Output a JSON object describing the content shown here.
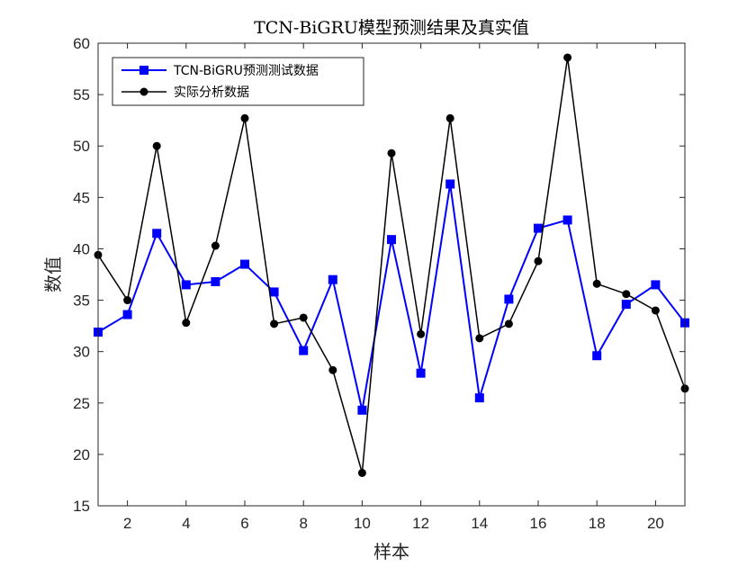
{
  "chart_data": {
    "type": "line",
    "title": "TCN-BiGRU模型预测结果及真实值",
    "xlabel": "样本",
    "ylabel": "数值",
    "xlim": [
      1,
      21
    ],
    "ylim": [
      15,
      60
    ],
    "xticks": [
      2,
      4,
      6,
      8,
      10,
      12,
      14,
      16,
      18,
      20
    ],
    "yticks": [
      15,
      20,
      25,
      30,
      35,
      40,
      45,
      50,
      55,
      60
    ],
    "legend_position": "top-left",
    "grid": false,
    "x": [
      1,
      2,
      3,
      4,
      5,
      6,
      7,
      8,
      9,
      10,
      11,
      12,
      13,
      14,
      15,
      16,
      17,
      18,
      19,
      20,
      21
    ],
    "series": [
      {
        "name": "TCN-BiGRU预测测试数据",
        "color": "#0000ff",
        "marker": "square",
        "values": [
          31.9,
          33.6,
          41.5,
          36.5,
          36.8,
          38.5,
          35.8,
          30.1,
          37.0,
          24.3,
          40.9,
          27.9,
          46.3,
          25.5,
          35.1,
          42.0,
          42.8,
          29.6,
          34.6,
          36.5,
          32.8
        ]
      },
      {
        "name": "实际分析数据",
        "color": "#000000",
        "marker": "circle",
        "values": [
          39.4,
          35.0,
          50.0,
          32.8,
          40.3,
          52.7,
          32.7,
          33.3,
          28.2,
          18.2,
          49.3,
          31.7,
          52.7,
          31.3,
          32.7,
          38.8,
          58.6,
          36.6,
          35.6,
          34.0,
          26.4
        ]
      }
    ]
  }
}
